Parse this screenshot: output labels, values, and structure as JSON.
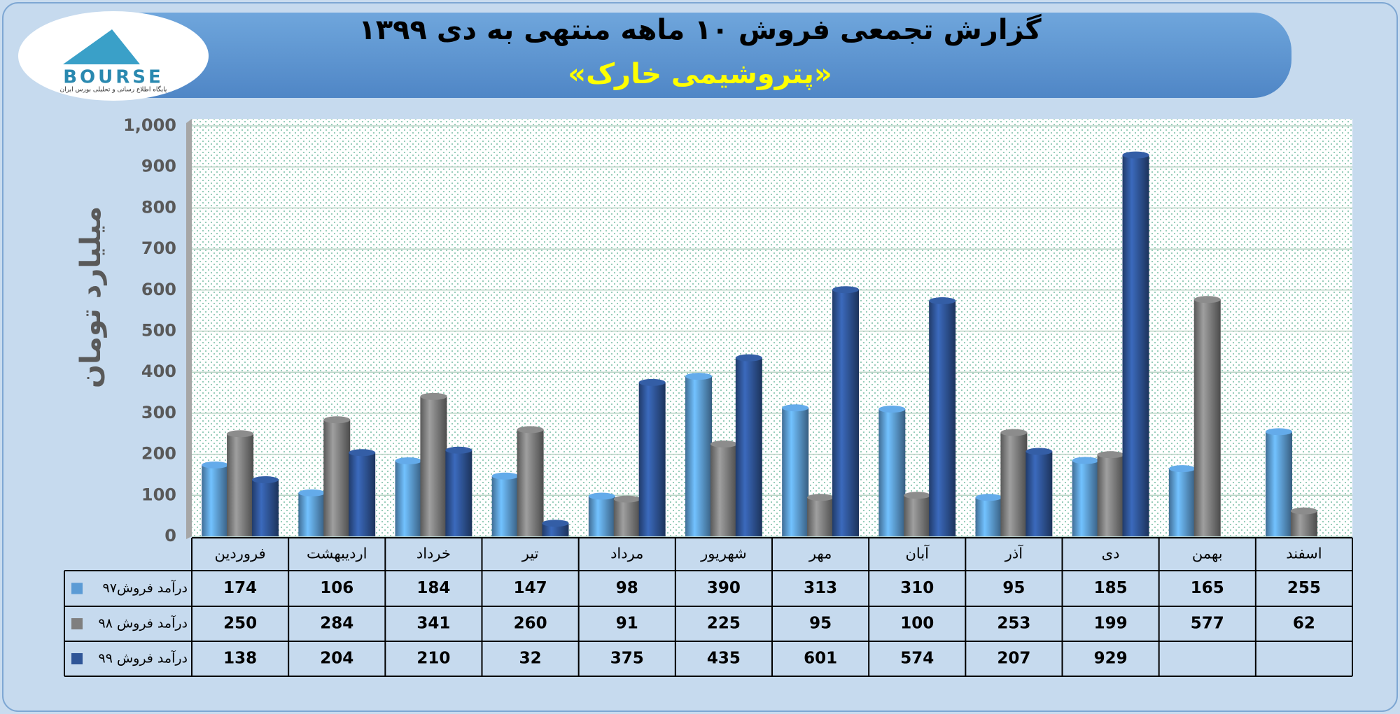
{
  "logo": {
    "name": "BOURSE",
    "tagline": "پایگاه اطلاع رسانی و تحلیلی بورس ایران"
  },
  "chart_data": {
    "type": "bar",
    "title": "گزارش تجمعی فروش ۱۰ ماهه منتهی به دی ۱۳۹۹",
    "subtitle": "«پتروشیمی خارک»",
    "y_label": "میلیارد تومان",
    "categories": [
      "فروردین",
      "اردیبهشت",
      "خرداد",
      "تیر",
      "مرداد",
      "شهریور",
      "مهر",
      "آبان",
      "آذر",
      "دی",
      "بهمن",
      "اسفند"
    ],
    "series": [
      {
        "name": "درآمد فروش۹۷",
        "color": "#5b9bd5",
        "values": [
          174,
          106,
          184,
          147,
          98,
          390,
          313,
          310,
          95,
          185,
          165,
          255
        ]
      },
      {
        "name": "درآمد فروش ۹۸",
        "color": "#7f7f7f",
        "values": [
          250,
          284,
          341,
          260,
          91,
          225,
          95,
          100,
          253,
          199,
          577,
          62
        ]
      },
      {
        "name": "درآمد فروش ۹۹",
        "color": "#2f5597",
        "values": [
          138,
          204,
          210,
          32,
          375,
          435,
          601,
          574,
          207,
          929,
          null,
          null
        ]
      }
    ],
    "ylim": [
      0,
      1000
    ],
    "yticks": [
      0,
      100,
      200,
      300,
      400,
      500,
      600,
      700,
      800,
      900,
      {
        "value": 1000,
        "label": "1,000"
      }
    ],
    "grid": true
  }
}
